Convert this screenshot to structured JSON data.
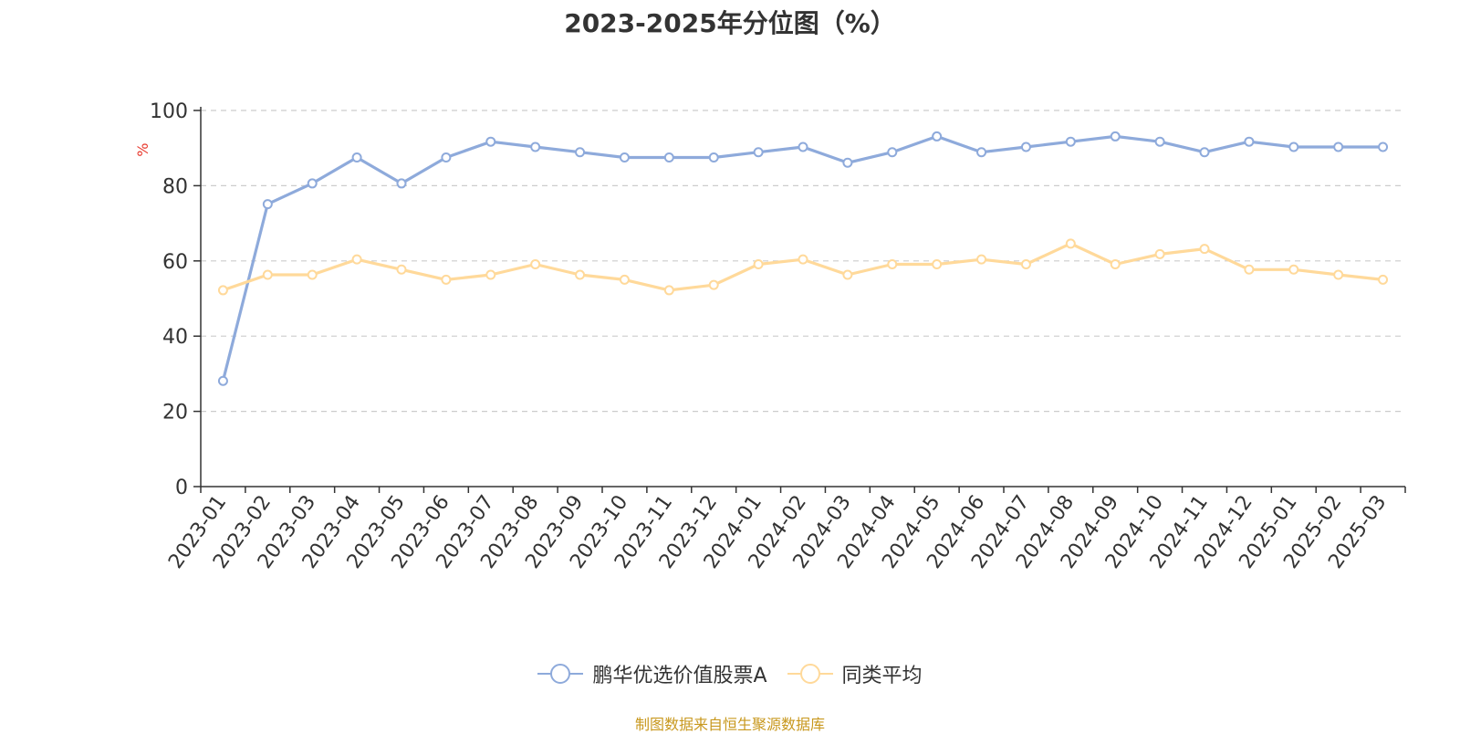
{
  "chart_data": {
    "type": "line",
    "title": "2023-2025年分位图（%）",
    "ylabel": "%",
    "ylim": [
      0,
      100
    ],
    "yticks": [
      0,
      20,
      40,
      60,
      80,
      100
    ],
    "grid": true,
    "legend_position": "bottom",
    "categories": [
      "2023-01",
      "2023-02",
      "2023-03",
      "2023-04",
      "2023-05",
      "2023-06",
      "2023-07",
      "2023-08",
      "2023-09",
      "2023-10",
      "2023-11",
      "2023-12",
      "2024-01",
      "2024-02",
      "2024-03",
      "2024-04",
      "2024-05",
      "2024-06",
      "2024-07",
      "2024-08",
      "2024-09",
      "2024-10",
      "2024-11",
      "2024-12",
      "2025-01",
      "2025-02",
      "2025-03"
    ],
    "series": [
      {
        "name": "鹏华优选价值股票A",
        "color": "#8eaadb",
        "values": [
          28.1,
          75.1,
          80.6,
          87.5,
          80.6,
          87.5,
          91.7,
          90.3,
          88.9,
          87.5,
          87.5,
          87.5,
          88.9,
          90.3,
          86.1,
          88.9,
          93.1,
          88.9,
          90.3,
          91.7,
          93.1,
          91.7,
          88.9,
          91.7,
          90.3,
          90.3,
          90.3
        ]
      },
      {
        "name": "同类平均",
        "color": "#ffd99a",
        "values": [
          52.2,
          56.3,
          56.3,
          60.4,
          57.7,
          55.0,
          56.3,
          59.1,
          56.3,
          55.0,
          52.2,
          53.6,
          59.1,
          60.4,
          56.3,
          59.1,
          59.1,
          60.4,
          59.1,
          64.6,
          59.1,
          61.8,
          63.2,
          57.7,
          57.7,
          56.3,
          55.0
        ]
      }
    ]
  },
  "source_note": "制图数据来自恒生聚源数据库"
}
